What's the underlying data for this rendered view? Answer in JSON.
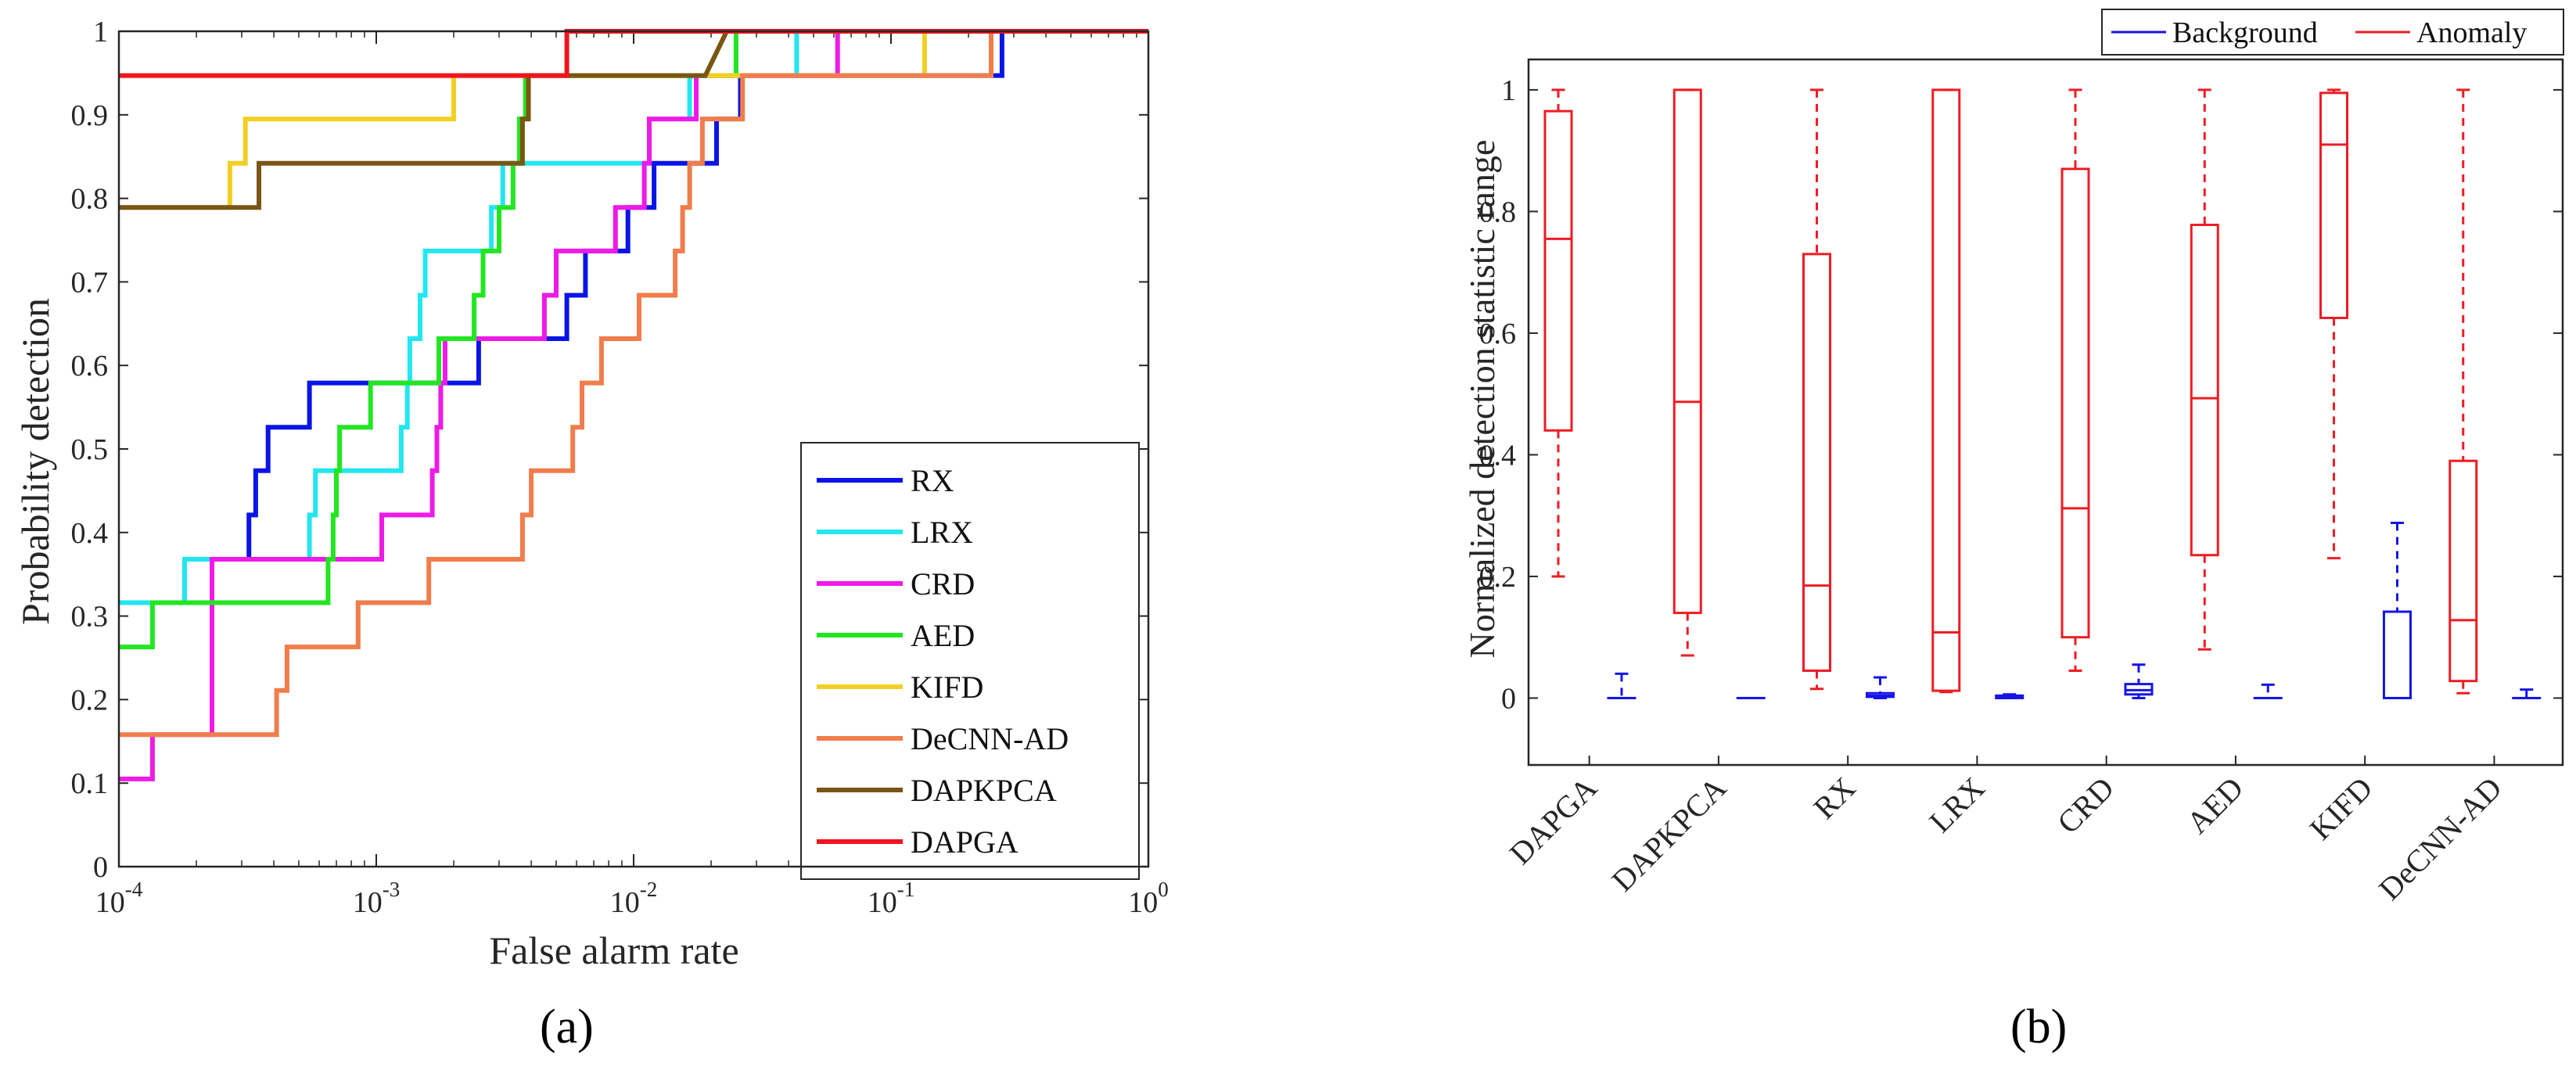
{
  "chart_data": [
    {
      "type": "line",
      "subtype": "roc-curve",
      "panel_label": "(a)",
      "xscale": "log",
      "xlim": [
        0.0001,
        1
      ],
      "ylim": [
        0,
        1
      ],
      "xlabel": "False alarm rate",
      "ylabel": "Probability detection",
      "x_tick_labels": [
        {
          "base": "10",
          "exp": "-4"
        },
        {
          "base": "10",
          "exp": "-3"
        },
        {
          "base": "10",
          "exp": "-2"
        },
        {
          "base": "10",
          "exp": "-1"
        },
        {
          "base": "10",
          "exp": "0"
        }
      ],
      "y_tick_labels": [
        "0",
        "0.1",
        "0.2",
        "0.3",
        "0.4",
        "0.5",
        "0.6",
        "0.7",
        "0.8",
        "0.9",
        "1"
      ],
      "legend_placement": "bottom-right",
      "series": [
        {
          "name": "RX",
          "color": "#0a14e6",
          "points": [
            [
              0.0001,
              0.316
            ],
            [
              0.00023,
              0.316
            ],
            [
              0.00023,
              0.368
            ],
            [
              0.00032,
              0.368
            ],
            [
              0.00032,
              0.421
            ],
            [
              0.00034,
              0.421
            ],
            [
              0.00034,
              0.474
            ],
            [
              0.00038,
              0.474
            ],
            [
              0.00038,
              0.526
            ],
            [
              0.00055,
              0.526
            ],
            [
              0.00055,
              0.579
            ],
            [
              0.00095,
              0.579
            ],
            [
              0.00095,
              0.579
            ],
            [
              0.0025,
              0.579
            ],
            [
              0.0025,
              0.632
            ],
            [
              0.0055,
              0.632
            ],
            [
              0.0055,
              0.684
            ],
            [
              0.0065,
              0.684
            ],
            [
              0.0065,
              0.737
            ],
            [
              0.0095,
              0.737
            ],
            [
              0.0095,
              0.789
            ],
            [
              0.012,
              0.789
            ],
            [
              0.012,
              0.842
            ],
            [
              0.021,
              0.842
            ],
            [
              0.021,
              0.895
            ],
            [
              0.026,
              0.895
            ],
            [
              0.026,
              0.947
            ],
            [
              0.27,
              0.947
            ],
            [
              0.27,
              1
            ],
            [
              1,
              1
            ]
          ]
        },
        {
          "name": "LRX",
          "color": "#22e6f0",
          "points": [
            [
              0.0001,
              0.316
            ],
            [
              0.00018,
              0.316
            ],
            [
              0.00018,
              0.368
            ],
            [
              0.00055,
              0.368
            ],
            [
              0.00055,
              0.421
            ],
            [
              0.00058,
              0.421
            ],
            [
              0.00058,
              0.474
            ],
            [
              0.00125,
              0.474
            ],
            [
              0.00125,
              0.526
            ],
            [
              0.00132,
              0.526
            ],
            [
              0.00132,
              0.579
            ],
            [
              0.00135,
              0.579
            ],
            [
              0.00135,
              0.632
            ],
            [
              0.00148,
              0.632
            ],
            [
              0.00148,
              0.684
            ],
            [
              0.00155,
              0.684
            ],
            [
              0.00155,
              0.737
            ],
            [
              0.0028,
              0.737
            ],
            [
              0.0028,
              0.789
            ],
            [
              0.0031,
              0.789
            ],
            [
              0.0031,
              0.842
            ],
            [
              0.0115,
              0.842
            ],
            [
              0.0115,
              0.895
            ],
            [
              0.0165,
              0.895
            ],
            [
              0.0165,
              0.947
            ],
            [
              0.043,
              0.947
            ],
            [
              0.043,
              1
            ],
            [
              1,
              1
            ]
          ]
        },
        {
          "name": "CRD",
          "color": "#ee1ae6",
          "points": [
            [
              0.0001,
              0.105
            ],
            [
              0.000135,
              0.105
            ],
            [
              0.000135,
              0.158
            ],
            [
              0.00023,
              0.158
            ],
            [
              0.00023,
              0.368
            ],
            [
              0.00105,
              0.368
            ],
            [
              0.00105,
              0.421
            ],
            [
              0.00165,
              0.421
            ],
            [
              0.00165,
              0.474
            ],
            [
              0.00172,
              0.474
            ],
            [
              0.00172,
              0.526
            ],
            [
              0.00178,
              0.526
            ],
            [
              0.00178,
              0.579
            ],
            [
              0.00185,
              0.579
            ],
            [
              0.00185,
              0.632
            ],
            [
              0.0045,
              0.632
            ],
            [
              0.0045,
              0.684
            ],
            [
              0.005,
              0.684
            ],
            [
              0.005,
              0.737
            ],
            [
              0.0085,
              0.737
            ],
            [
              0.0085,
              0.789
            ],
            [
              0.011,
              0.789
            ],
            [
              0.011,
              0.842
            ],
            [
              0.0115,
              0.842
            ],
            [
              0.0115,
              0.895
            ],
            [
              0.0175,
              0.895
            ],
            [
              0.0175,
              0.947
            ],
            [
              0.062,
              0.947
            ],
            [
              0.062,
              1
            ],
            [
              1,
              1
            ]
          ]
        },
        {
          "name": "AED",
          "color": "#22e622",
          "points": [
            [
              0.0001,
              0.263
            ],
            [
              0.000135,
              0.263
            ],
            [
              0.000135,
              0.316
            ],
            [
              0.00065,
              0.316
            ],
            [
              0.00065,
              0.368
            ],
            [
              0.00068,
              0.368
            ],
            [
              0.00068,
              0.421
            ],
            [
              0.0007,
              0.421
            ],
            [
              0.0007,
              0.474
            ],
            [
              0.00072,
              0.474
            ],
            [
              0.00072,
              0.526
            ],
            [
              0.00095,
              0.526
            ],
            [
              0.00095,
              0.579
            ],
            [
              0.00175,
              0.579
            ],
            [
              0.00175,
              0.632
            ],
            [
              0.0024,
              0.632
            ],
            [
              0.0024,
              0.684
            ],
            [
              0.0026,
              0.684
            ],
            [
              0.0026,
              0.737
            ],
            [
              0.003,
              0.737
            ],
            [
              0.003,
              0.789
            ],
            [
              0.0034,
              0.789
            ],
            [
              0.0034,
              0.842
            ],
            [
              0.0036,
              0.842
            ],
            [
              0.0036,
              0.895
            ],
            [
              0.0038,
              0.895
            ],
            [
              0.0038,
              0.947
            ],
            [
              0.025,
              0.947
            ],
            [
              0.025,
              1
            ],
            [
              1,
              1
            ]
          ]
        },
        {
          "name": "KIFD",
          "color": "#f2d023",
          "points": [
            [
              0.0001,
              0.789
            ],
            [
              0.00027,
              0.789
            ],
            [
              0.00027,
              0.842
            ],
            [
              0.00031,
              0.842
            ],
            [
              0.00031,
              0.895
            ],
            [
              0.002,
              0.895
            ],
            [
              0.002,
              0.947
            ],
            [
              0.135,
              0.947
            ],
            [
              0.135,
              1
            ],
            [
              1,
              1
            ]
          ]
        },
        {
          "name": "DeCNN-AD",
          "color": "#f07d4b",
          "points": [
            [
              0.0001,
              0.158
            ],
            [
              0.00041,
              0.158
            ],
            [
              0.00041,
              0.211
            ],
            [
              0.00045,
              0.211
            ],
            [
              0.00045,
              0.263
            ],
            [
              0.00085,
              0.263
            ],
            [
              0.00085,
              0.316
            ],
            [
              0.0016,
              0.316
            ],
            [
              0.0016,
              0.368
            ],
            [
              0.0037,
              0.368
            ],
            [
              0.0037,
              0.421
            ],
            [
              0.004,
              0.421
            ],
            [
              0.004,
              0.474
            ],
            [
              0.0058,
              0.474
            ],
            [
              0.0058,
              0.526
            ],
            [
              0.0063,
              0.526
            ],
            [
              0.0063,
              0.579
            ],
            [
              0.0075,
              0.579
            ],
            [
              0.0075,
              0.632
            ],
            [
              0.0105,
              0.632
            ],
            [
              0.0105,
              0.684
            ],
            [
              0.0145,
              0.684
            ],
            [
              0.0145,
              0.737
            ],
            [
              0.0155,
              0.737
            ],
            [
              0.0155,
              0.789
            ],
            [
              0.0165,
              0.789
            ],
            [
              0.0165,
              0.842
            ],
            [
              0.0185,
              0.842
            ],
            [
              0.0185,
              0.895
            ],
            [
              0.0265,
              0.895
            ],
            [
              0.0265,
              0.947
            ],
            [
              0.245,
              0.947
            ],
            [
              0.245,
              1
            ],
            [
              1,
              1
            ]
          ]
        },
        {
          "name": "DAPKPCA",
          "color": "#7a5614",
          "points": [
            [
              0.0001,
              0.789
            ],
            [
              0.00035,
              0.789
            ],
            [
              0.00035,
              0.842
            ],
            [
              0.0037,
              0.842
            ],
            [
              0.0037,
              0.895
            ],
            [
              0.0039,
              0.895
            ],
            [
              0.0039,
              0.947
            ],
            [
              0.019,
              0.947
            ],
            [
              0.023,
              1
            ],
            [
              1,
              1
            ]
          ]
        },
        {
          "name": "DAPGA",
          "color": "#f0141e",
          "points": [
            [
              0.0001,
              0.947
            ],
            [
              0.0055,
              0.947
            ],
            [
              0.0055,
              1
            ],
            [
              1,
              1
            ]
          ]
        }
      ]
    },
    {
      "type": "box",
      "panel_label": "(b)",
      "ylabel": "Normalized detection statistic range",
      "ylim": [
        -0.11,
        1.05
      ],
      "y_tick_labels": [
        "0",
        "0.2",
        "0.4",
        "0.6",
        "0.8",
        "1"
      ],
      "legend_placement": "top-right",
      "legend": [
        {
          "name": "Background",
          "color": "#1515e6"
        },
        {
          "name": "Anomaly",
          "color": "#ee1c24"
        }
      ],
      "categories": [
        "DAPGA",
        "DAPKPCA",
        "RX",
        "LRX",
        "CRD",
        "AED",
        "KIFD",
        "DeCNN-AD"
      ],
      "anomaly": [
        {
          "min": 0.2,
          "q1": 0.44,
          "median": 0.755,
          "q3": 0.965,
          "max": 1.0
        },
        {
          "min": 0.07,
          "q1": 0.14,
          "median": 0.487,
          "q3": 1.0,
          "max": 1.0
        },
        {
          "min": 0.015,
          "q1": 0.045,
          "median": 0.185,
          "q3": 0.73,
          "max": 1.0
        },
        {
          "min": 0.01,
          "q1": 0.012,
          "median": 0.108,
          "q3": 1.0,
          "max": 1.0
        },
        {
          "min": 0.045,
          "q1": 0.1,
          "median": 0.312,
          "q3": 0.87,
          "max": 1.0
        },
        {
          "min": 0.08,
          "q1": 0.235,
          "median": 0.493,
          "q3": 0.778,
          "max": 1.0
        },
        {
          "min": 0.23,
          "q1": 0.625,
          "median": 0.91,
          "q3": 0.995,
          "max": 1.0
        },
        {
          "min": 0.008,
          "q1": 0.028,
          "median": 0.128,
          "q3": 0.39,
          "max": 1.0
        }
      ],
      "background": [
        {
          "min": 0.0,
          "q1": 0.0,
          "median": 0.0,
          "q3": 0.0,
          "max": 0.04
        },
        {
          "min": 0.0,
          "q1": 0.0,
          "median": 0.0,
          "q3": 0.0,
          "max": 0.0
        },
        {
          "min": 0.0,
          "q1": 0.002,
          "median": 0.004,
          "q3": 0.008,
          "max": 0.034
        },
        {
          "min": 0.0,
          "q1": 0.0,
          "median": 0.002,
          "q3": 0.004,
          "max": 0.006
        },
        {
          "min": 0.0,
          "q1": 0.006,
          "median": 0.013,
          "q3": 0.023,
          "max": 0.055
        },
        {
          "min": 0.0,
          "q1": 0.0,
          "median": 0.0,
          "q3": 0.0,
          "max": 0.022
        },
        {
          "min": 0.0,
          "q1": 0.0,
          "median": 0.0,
          "q3": 0.142,
          "max": 0.288
        },
        {
          "min": 0.0,
          "q1": 0.0,
          "median": 0.0,
          "q3": 0.0,
          "max": 0.014
        }
      ]
    }
  ]
}
